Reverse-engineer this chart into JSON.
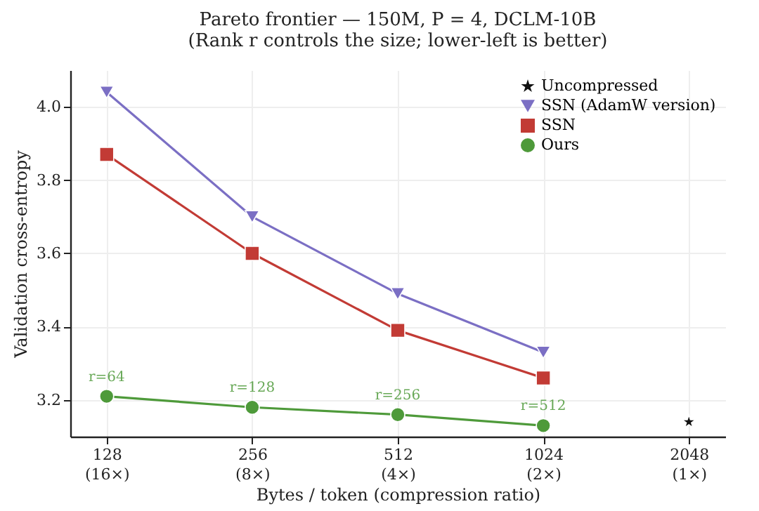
{
  "chart_data": {
    "type": "line",
    "title": "Pareto frontier — 150M, P = 4, DCLM-10B",
    "subtitle": "(Rank r controls the size; lower-left is better)",
    "xlabel": "Bytes / token  (compression ratio)",
    "ylabel": "Validation cross-entropy",
    "categories": [
      "128\n(16×)",
      "256\n(8×)",
      "512\n(4×)",
      "1024\n(2×)",
      "2048\n(1×)"
    ],
    "ylim": [
      3.1,
      4.1
    ],
    "yticks": [
      3.2,
      3.4,
      3.6,
      3.8,
      {
        "value": 4.0,
        "label": "4.0"
      }
    ],
    "grid": true,
    "legend": "top right",
    "series": [
      {
        "name": "Uncompressed",
        "type": "scatter",
        "marker": "star",
        "color": "#111111",
        "values": [
          null,
          null,
          null,
          null,
          3.14
        ]
      },
      {
        "name": "SSN (AdamW version)",
        "type": "line",
        "marker": "triangle",
        "color": "#7b6fc4",
        "values": [
          4.04,
          3.7,
          3.49,
          3.33,
          null
        ]
      },
      {
        "name": "SSN",
        "type": "line",
        "marker": "square",
        "color": "#c23b35",
        "values": [
          3.87,
          3.6,
          3.39,
          3.26,
          null
        ]
      },
      {
        "name": "Ours",
        "marker": "circle",
        "color": "#4e9a3a",
        "values": [
          3.21,
          3.18,
          3.16,
          3.13,
          null
        ]
      }
    ],
    "annotations": [
      {
        "text": "r=64",
        "x": "128\n(16×)",
        "y": 3.21
      },
      {
        "text": "r=128",
        "x": "256\n(8×)",
        "y": 3.18
      },
      {
        "text": "r=256",
        "x": "512\n(4×)",
        "y": 3.16
      },
      {
        "text": "r=512",
        "x": "1024\n(2×)",
        "y": 3.13
      }
    ]
  }
}
